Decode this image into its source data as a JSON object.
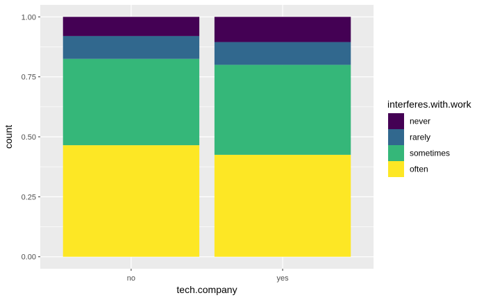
{
  "chart_data": {
    "type": "bar",
    "stacked": true,
    "categories": [
      "no",
      "yes"
    ],
    "xlabel": "tech.company",
    "ylabel": "count",
    "ylim": [
      0,
      1
    ],
    "yticks": [
      "0.00",
      "0.25",
      "0.50",
      "0.75",
      "1.00"
    ],
    "ytick_values": [
      0,
      0.25,
      0.5,
      0.75,
      1.0
    ],
    "legend": {
      "title": "interferes.with.work",
      "placement": "right"
    },
    "series": [
      {
        "name": "never",
        "color": "#440154",
        "values": [
          0.08,
          0.105
        ]
      },
      {
        "name": "rarely",
        "color": "#31688e",
        "values": [
          0.095,
          0.095
        ]
      },
      {
        "name": "sometimes",
        "color": "#35b779",
        "values": [
          0.36,
          0.375
        ]
      },
      {
        "name": "often",
        "color": "#fde725",
        "values": [
          0.465,
          0.425
        ]
      }
    ],
    "grid": true,
    "panel_background": "#ebebeb",
    "grid_color": "#ffffff"
  }
}
